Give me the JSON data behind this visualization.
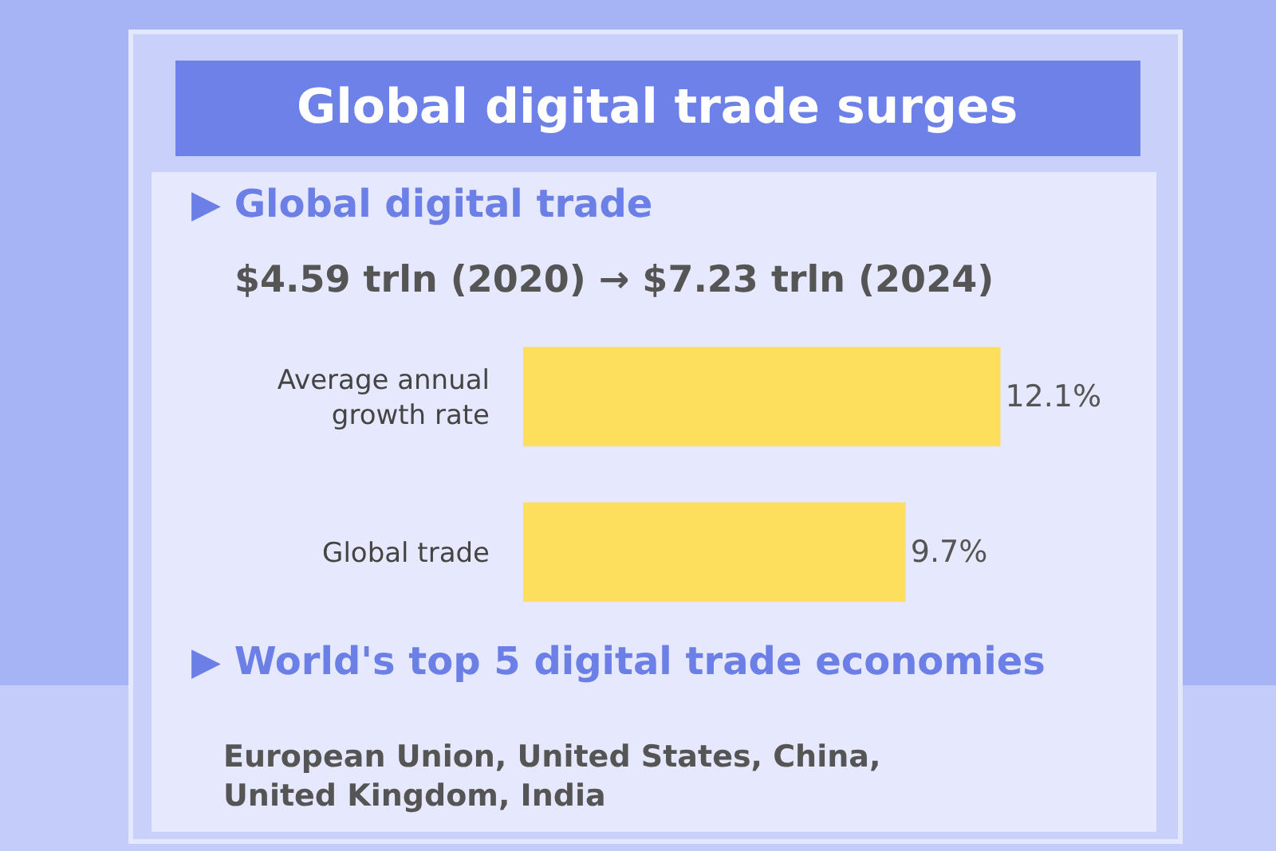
{
  "chart_data": {
    "type": "bar",
    "orientation": "horizontal",
    "title": "Global digital trade surges",
    "subtitle": "▶ Global digital trade",
    "categories": [
      "Average annual growth rate",
      "Global trade"
    ],
    "values": [
      12.1,
      9.7
    ],
    "value_labels": [
      "12.1%",
      "9.7%"
    ],
    "color": "#fede5d",
    "legend": false,
    "annotations": [
      "$4.59 trln (2020) → $7.23 trln (2024)",
      "▶ World's top 5 digital trade economies",
      "European Union, United States, China, United Kingdom, India"
    ]
  }
}
